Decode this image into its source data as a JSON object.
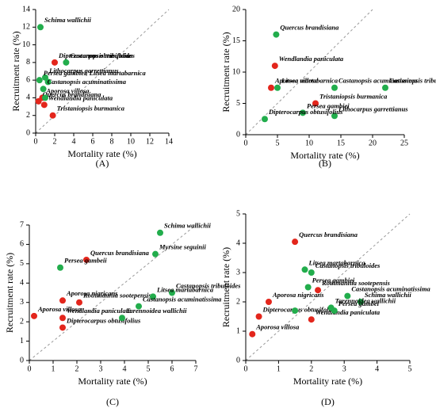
{
  "chart_data": [
    {
      "type": "scatter",
      "caption": "(A)",
      "xlabel": "Mortality rate (%)",
      "ylabel": "Recruitment rate (%)",
      "xlim": [
        0,
        14
      ],
      "xticks": [
        0,
        2,
        4,
        6,
        8,
        10,
        12,
        14
      ],
      "ylim": [
        0,
        14
      ],
      "yticks": [
        0,
        2,
        4,
        6,
        8,
        10,
        12,
        14
      ],
      "series": [
        {
          "color": "#e3261c",
          "x": [
            2.0,
            0.7,
            0.3,
            0.9,
            1.8
          ],
          "values": [
            8.0,
            4.0,
            3.6,
            3.2,
            2.0
          ],
          "labels": [
            "Dipterocarpus obtusifolius",
            "Aporosa villosa",
            "Quercus brandisiana",
            "Wendlandia paniculata",
            "Tristaniopsis burmanica"
          ]
        },
        {
          "color": "#22ad4c",
          "x": [
            0.5,
            3.2,
            1.0,
            0.4,
            1.3,
            0.8,
            1.0
          ],
          "values": [
            12.0,
            8.0,
            6.3,
            6.0,
            5.8,
            5.0,
            4.0
          ],
          "labels": [
            "Schima wallichii",
            "Castanopsis tribuloides",
            "Lithocarpus garrettianus",
            "Persea gambiei, Litsea martabarnica",
            null,
            "Castanopsis acuminatissima",
            null
          ]
        }
      ]
    },
    {
      "type": "scatter",
      "caption": "(B)",
      "xlabel": "Mortality rate (%)",
      "ylabel": "Recruitment rate (%)",
      "xlim": [
        0,
        25
      ],
      "xticks": [
        0,
        5,
        10,
        15,
        20,
        25
      ],
      "ylim": [
        0,
        20
      ],
      "yticks": [
        0,
        5,
        10,
        15,
        20
      ],
      "series": [
        {
          "color": "#e3261c",
          "x": [
            4.6,
            4.0,
            11.0
          ],
          "values": [
            11.0,
            7.5,
            5.0
          ],
          "labels": [
            "Wendlandia paniculata",
            "Aporosa villosa",
            "Tristaniopsis burmanica"
          ]
        },
        {
          "color": "#22ad4c",
          "x": [
            4.8,
            5.0,
            14.0,
            22.0,
            9.0,
            14.0,
            3.0
          ],
          "values": [
            16.0,
            7.5,
            7.5,
            7.5,
            3.5,
            3.0,
            2.5
          ],
          "labels": [
            "Quercus brandisiana",
            "Litsea martabarnica",
            "Castanopsis acuminatissima",
            "Castanopsis tribuloides",
            "Persea gambiei",
            "Lithocarpus garrettianus",
            "Dipterocarpus obtusifolius"
          ]
        }
      ]
    },
    {
      "type": "scatter",
      "caption": "(C)",
      "xlabel": "Mortality rate (%)",
      "ylabel": "Recruitment rate (%)",
      "xlim": [
        0,
        7
      ],
      "xticks": [
        0,
        1,
        2,
        3,
        4,
        5,
        6,
        7
      ],
      "ylim": [
        0,
        7
      ],
      "yticks": [
        0,
        1,
        2,
        3,
        4,
        5,
        6,
        7
      ],
      "series": [
        {
          "color": "#e3261c",
          "x": [
            2.4,
            2.1,
            1.4,
            1.4,
            0.2,
            1.4
          ],
          "values": [
            5.2,
            3.0,
            3.1,
            2.2,
            2.3,
            1.7
          ],
          "labels": [
            "Quercus brandisiana",
            "Rothmannia sootepensis",
            "Aporosa nigricans",
            "Wendlandia paniculata",
            "Aporosa villosa",
            "Dipterocarpus obtusifolius"
          ]
        },
        {
          "color": "#22ad4c",
          "x": [
            5.5,
            5.3,
            1.3,
            6.0,
            5.2,
            4.6,
            3.9
          ],
          "values": [
            6.6,
            5.5,
            4.8,
            3.5,
            3.3,
            2.8,
            2.2
          ],
          "labels": [
            "Schima wallichii",
            "Myrsine seguinii",
            "Persea gambeii",
            "Castanopsis tribuloides",
            "Litsea martabarnica",
            "Castanopsis acuminatissima",
            "Tarennoidea wallichii"
          ]
        }
      ]
    },
    {
      "type": "scatter",
      "caption": "(D)",
      "xlabel": "Mortality rate (%)",
      "ylabel": "Recruitment rate (%)",
      "xlim": [
        0,
        5
      ],
      "xticks": [
        0,
        1,
        2,
        3,
        4,
        5
      ],
      "ylim": [
        0,
        5
      ],
      "yticks": [
        0,
        1,
        2,
        3,
        4,
        5
      ],
      "series": [
        {
          "color": "#e3261c",
          "x": [
            1.5,
            2.2,
            0.7,
            0.4,
            2.0,
            0.2
          ],
          "values": [
            4.05,
            2.4,
            2.0,
            1.5,
            1.4,
            0.9
          ],
          "labels": [
            "Quercus brandisiana",
            "Rothmannia sootepensis",
            "Aporosa nigricans",
            "Dipterocarpus obtusifolius",
            "Wendlandia paniculata",
            "Aporosa villosa"
          ]
        },
        {
          "color": "#22ad4c",
          "x": [
            1.8,
            2.0,
            1.9,
            3.1,
            3.5,
            2.6,
            2.7,
            1.5
          ],
          "values": [
            3.1,
            3.0,
            2.5,
            2.2,
            2.0,
            1.8,
            1.7,
            1.7
          ],
          "labels": [
            "Litsea martabarnica",
            "Castanopsis tribuloides",
            "Persea gambiei",
            "Castanopsis acuminatissima",
            "Schima wallichii",
            "Tarennoidea wallichii",
            "Persea gambei",
            null
          ]
        }
      ]
    }
  ]
}
